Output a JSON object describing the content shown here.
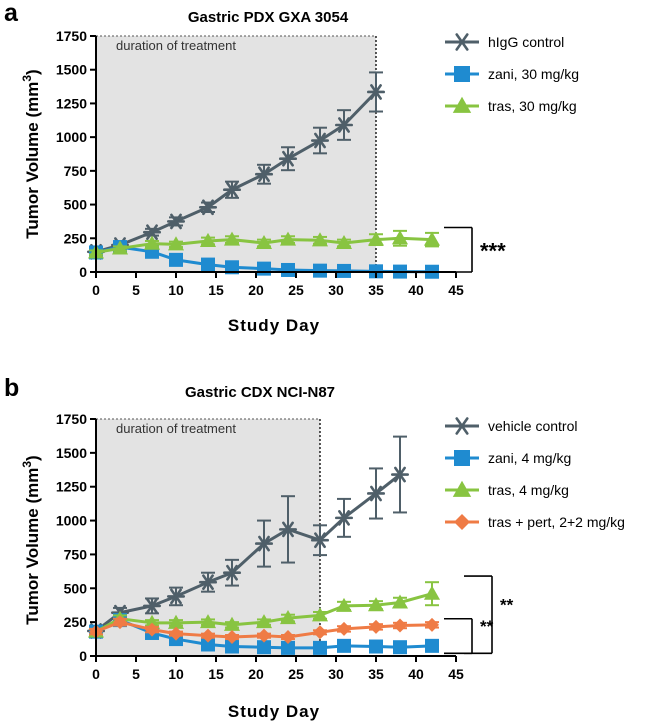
{
  "chart_data": [
    {
      "type": "line",
      "panel_label": "a",
      "title": "Gastric PDX GXA 3054",
      "xlabel": "Study Day",
      "ylabel": "Tumor Volume (mm3)",
      "ylabel_main": "Tumor Volume (mm",
      "ylabel_sup": "3",
      "ylabel_close": ")",
      "xlim": [
        0,
        45
      ],
      "ylim": [
        0,
        1750
      ],
      "xticks": [
        "0",
        "5",
        "10",
        "15",
        "20",
        "25",
        "30",
        "35",
        "40",
        "45"
      ],
      "yticks": [
        "0",
        "250",
        "500",
        "750",
        "1000",
        "1250",
        "1500",
        "1750"
      ],
      "xtick_values": [
        0,
        5,
        10,
        15,
        20,
        25,
        30,
        35,
        40,
        45
      ],
      "ytick_values": [
        0,
        250,
        500,
        750,
        1000,
        1250,
        1500,
        1750
      ],
      "treatment": {
        "start": 0,
        "end": 35,
        "label": "duration of treatment"
      },
      "significance": [
        {
          "label": "***",
          "from": "zani, 30 mg/kg",
          "to": "tras, 30 mg/kg",
          "y_low": 0,
          "y_high": 330
        }
      ],
      "series": [
        {
          "name": "hIgG control",
          "color": "#4f5f69",
          "marker": "asterisk",
          "x": [
            0,
            3,
            7,
            10,
            14,
            17,
            21,
            24,
            28,
            31,
            35
          ],
          "y": [
            150,
            200,
            295,
            375,
            480,
            610,
            725,
            840,
            975,
            1090,
            1335
          ],
          "err": [
            15,
            20,
            25,
            30,
            35,
            60,
            70,
            85,
            95,
            110,
            145
          ]
        },
        {
          "name": "zani, 30 mg/kg",
          "color": "#1f8bd0",
          "marker": "square",
          "x": [
            0,
            3,
            7,
            10,
            14,
            17,
            21,
            24,
            28,
            31,
            35,
            38,
            42
          ],
          "y": [
            145,
            185,
            150,
            90,
            55,
            35,
            25,
            15,
            10,
            8,
            5,
            3,
            2
          ],
          "err": [
            15,
            15,
            20,
            15,
            10,
            8,
            5,
            4,
            3,
            3,
            2,
            2,
            2
          ]
        },
        {
          "name": "tras, 30 mg/kg",
          "color": "#88c441",
          "marker": "triangle",
          "x": [
            0,
            3,
            7,
            10,
            14,
            17,
            21,
            24,
            28,
            31,
            35,
            38,
            42
          ],
          "y": [
            145,
            175,
            210,
            205,
            230,
            240,
            215,
            240,
            235,
            215,
            240,
            250,
            240
          ],
          "err": [
            15,
            15,
            20,
            20,
            25,
            25,
            25,
            25,
            25,
            25,
            40,
            55,
            50
          ]
        }
      ]
    },
    {
      "type": "line",
      "panel_label": "b",
      "title": "Gastric CDX NCI-N87",
      "xlabel": "Study Day",
      "ylabel": "Tumor Volume (mm3)",
      "ylabel_main": "Tumor Volume (mm",
      "ylabel_sup": "3",
      "ylabel_close": ")",
      "xlim": [
        0,
        45
      ],
      "ylim": [
        0,
        1750
      ],
      "xticks": [
        "0",
        "5",
        "10",
        "15",
        "20",
        "25",
        "30",
        "35",
        "40",
        "45"
      ],
      "yticks": [
        "0",
        "250",
        "500",
        "750",
        "1000",
        "1250",
        "1500",
        "1750"
      ],
      "xtick_values": [
        0,
        5,
        10,
        15,
        20,
        25,
        30,
        35,
        40,
        45
      ],
      "ytick_values": [
        0,
        250,
        500,
        750,
        1000,
        1250,
        1500,
        1750
      ],
      "treatment": {
        "start": 0,
        "end": 28,
        "label": "duration of treatment"
      },
      "significance": [
        {
          "label": "**",
          "from": "tras + pert, 2+2 mg/kg",
          "to": "zani, 4 mg/kg",
          "y_low": 20,
          "y_high": 275
        },
        {
          "label": "**",
          "from": "tras, 4 mg/kg",
          "to": "zani, 4 mg/kg",
          "y_low": 20,
          "y_high": 590
        }
      ],
      "series": [
        {
          "name": "vehicle control",
          "color": "#4f5f69",
          "marker": "asterisk",
          "x": [
            0,
            3,
            7,
            10,
            14,
            17,
            21,
            24,
            28,
            31,
            35,
            38
          ],
          "y": [
            185,
            320,
            370,
            440,
            545,
            615,
            830,
            935,
            855,
            1020,
            1200,
            1340
          ],
          "err": [
            20,
            35,
            55,
            65,
            70,
            95,
            170,
            245,
            110,
            140,
            185,
            280
          ]
        },
        {
          "name": "zani, 4 mg/kg",
          "color": "#1f8bd0",
          "marker": "square",
          "x": [
            0,
            3,
            7,
            10,
            14,
            17,
            21,
            24,
            28,
            31,
            35,
            38,
            42
          ],
          "y": [
            180,
            265,
            170,
            125,
            85,
            70,
            65,
            60,
            60,
            75,
            70,
            65,
            75
          ],
          "err": [
            20,
            25,
            20,
            15,
            12,
            10,
            10,
            10,
            10,
            12,
            10,
            10,
            12
          ]
        },
        {
          "name": "tras, 4 mg/kg",
          "color": "#88c441",
          "marker": "triangle",
          "x": [
            0,
            3,
            7,
            10,
            14,
            17,
            21,
            24,
            28,
            31,
            35,
            38,
            42
          ],
          "y": [
            180,
            275,
            245,
            245,
            250,
            230,
            250,
            280,
            300,
            370,
            375,
            395,
            460
          ],
          "err": [
            20,
            25,
            20,
            20,
            20,
            20,
            20,
            25,
            25,
            30,
            30,
            35,
            85
          ]
        },
        {
          "name": "tras + pert, 2+2 mg/kg",
          "color": "#ef7b45",
          "marker": "diamond",
          "x": [
            0,
            3,
            7,
            10,
            14,
            17,
            21,
            24,
            28,
            31,
            35,
            38,
            42
          ],
          "y": [
            180,
            250,
            195,
            165,
            150,
            140,
            150,
            140,
            175,
            200,
            215,
            225,
            230
          ],
          "err": [
            20,
            25,
            20,
            15,
            15,
            15,
            15,
            15,
            15,
            20,
            20,
            20,
            20
          ]
        }
      ]
    }
  ]
}
